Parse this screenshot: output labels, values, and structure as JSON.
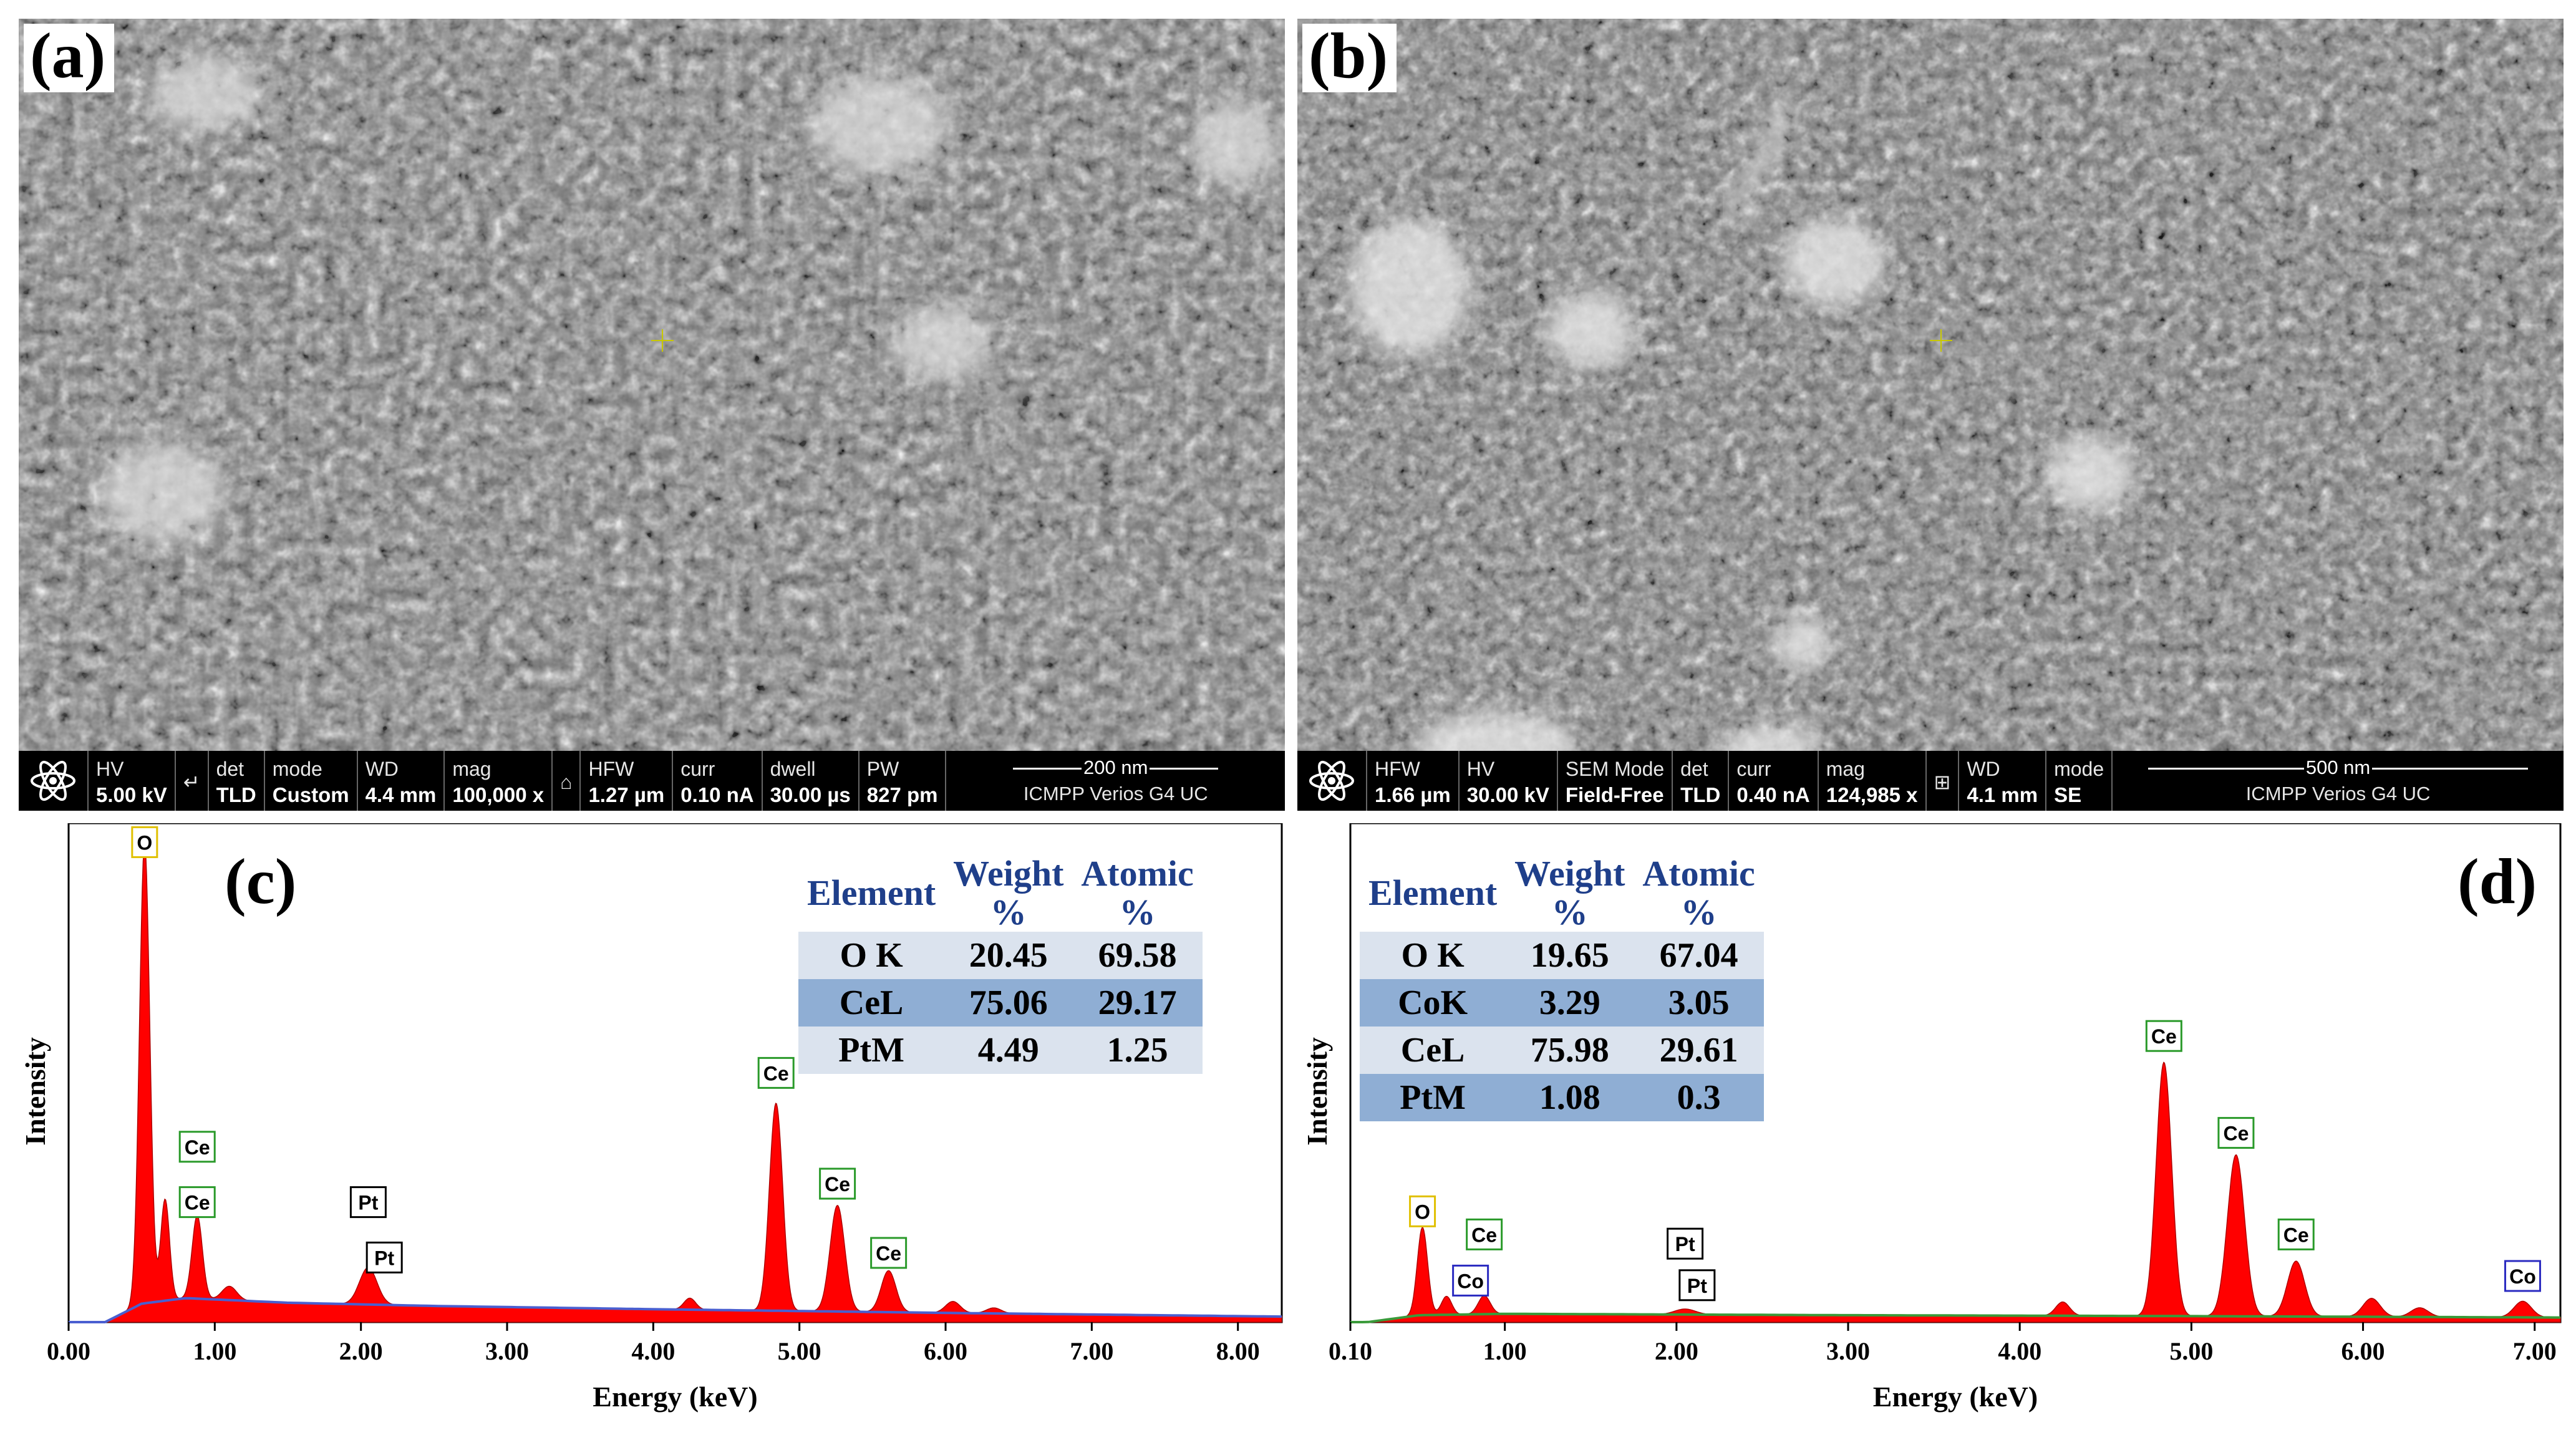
{
  "panels": {
    "a": {
      "letter": "(a)",
      "databar": {
        "cells": [
          {
            "label": "HV",
            "value": "5.00 kV"
          },
          {
            "label": "↵",
            "value": ""
          },
          {
            "label": "det",
            "value": "TLD"
          },
          {
            "label": "mode",
            "value": "Custom"
          },
          {
            "label": "WD",
            "value": "4.4 mm"
          },
          {
            "label": "mag",
            "value": "100,000 x"
          },
          {
            "label": "⌂",
            "value": ""
          },
          {
            "label": "HFW",
            "value": "1.27 µm"
          },
          {
            "label": "curr",
            "value": "0.10 nA"
          },
          {
            "label": "dwell",
            "value": "30.00 µs"
          },
          {
            "label": "PW",
            "value": "827 pm"
          }
        ],
        "scalebar": "200 nm",
        "instrument": "ICMPP Verios G4 UC"
      }
    },
    "b": {
      "letter": "(b)",
      "databar": {
        "cells": [
          {
            "label": "HFW",
            "value": "1.66 µm"
          },
          {
            "label": "HV",
            "value": "30.00 kV"
          },
          {
            "label": "SEM Mode",
            "value": "Field-Free"
          },
          {
            "label": "det",
            "value": "TLD"
          },
          {
            "label": "curr",
            "value": "0.40 nA"
          },
          {
            "label": "mag",
            "value": "124,985 x"
          },
          {
            "label": "⊞",
            "value": ""
          },
          {
            "label": "WD",
            "value": "4.1 mm"
          },
          {
            "label": "mode",
            "value": "SE"
          }
        ],
        "scalebar": "500 nm",
        "instrument": "ICMPP Verios G4 UC"
      }
    },
    "c": {
      "letter": "(c)",
      "table": {
        "headers": {
          "element": "Element",
          "weight_top": "Weight",
          "weight_bot": "%",
          "atomic_top": "Atomic",
          "atomic_bot": "%"
        },
        "rows": [
          {
            "element": "O K",
            "weight": "20.45",
            "atomic": "69.58"
          },
          {
            "element": "CeL",
            "weight": "75.06",
            "atomic": "29.17"
          },
          {
            "element": "PtM",
            "weight": "4.49",
            "atomic": "1.25"
          }
        ]
      }
    },
    "d": {
      "letter": "(d)",
      "table": {
        "headers": {
          "element": "Element",
          "weight_top": "Weight",
          "weight_bot": "%",
          "atomic_top": "Atomic",
          "atomic_bot": "%"
        },
        "rows": [
          {
            "element": "O K",
            "weight": "19.65",
            "atomic": "67.04"
          },
          {
            "element": "CoK",
            "weight": "3.29",
            "atomic": "3.05"
          },
          {
            "element": "CeL",
            "weight": "75.98",
            "atomic": "29.61"
          },
          {
            "element": "PtM",
            "weight": "1.08",
            "atomic": "0.3"
          }
        ]
      }
    }
  },
  "chart_data": [
    {
      "type": "area",
      "panel": "c",
      "xlabel": "Energy (keV)",
      "ylabel": "Intensity",
      "xlim": [
        0.0,
        8.3
      ],
      "ylim": [
        0,
        100
      ],
      "xticks": [
        "0.00",
        "1.00",
        "2.00",
        "3.00",
        "4.00",
        "5.00",
        "6.00",
        "7.00",
        "8.00"
      ],
      "xtick_values": [
        0,
        1,
        2,
        3,
        4,
        5,
        6,
        7,
        8
      ],
      "fill_color": "#ff0000",
      "background_color": "#4a5fd0",
      "peaks": [
        {
          "x": 0.52,
          "y": 100,
          "w": 0.035
        },
        {
          "x": 0.66,
          "y": 22,
          "w": 0.03
        },
        {
          "x": 0.88,
          "y": 18,
          "w": 0.035
        },
        {
          "x": 1.1,
          "y": 3,
          "w": 0.05
        },
        {
          "x": 2.05,
          "y": 8,
          "w": 0.06
        },
        {
          "x": 4.25,
          "y": 2.5,
          "w": 0.04
        },
        {
          "x": 4.84,
          "y": 45,
          "w": 0.045
        },
        {
          "x": 5.26,
          "y": 23,
          "w": 0.05
        },
        {
          "x": 5.61,
          "y": 9,
          "w": 0.05
        },
        {
          "x": 6.05,
          "y": 2.5,
          "w": 0.05
        },
        {
          "x": 6.33,
          "y": 1.2,
          "w": 0.05
        }
      ],
      "background": [
        [
          0.25,
          0
        ],
        [
          0.5,
          4
        ],
        [
          0.8,
          5.2
        ],
        [
          1.5,
          4.2
        ],
        [
          2.5,
          3.5
        ],
        [
          4.0,
          2.8
        ],
        [
          6.0,
          2.0
        ],
        [
          8.3,
          1.2
        ]
      ],
      "peak_labels": [
        {
          "text": "O",
          "x": 0.52,
          "y": 104,
          "color": "#e0c000"
        },
        {
          "text": "Ce",
          "x": 0.88,
          "y": 38,
          "color": "#2a9a2a"
        },
        {
          "text": "Ce",
          "x": 0.88,
          "y": 26,
          "color": "#2a9a2a"
        },
        {
          "text": "Pt",
          "x": 2.05,
          "y": 26,
          "color": "#000000"
        },
        {
          "text": "Pt",
          "x": 2.16,
          "y": 14,
          "color": "#000000"
        },
        {
          "text": "Ce",
          "x": 4.84,
          "y": 54,
          "color": "#2a9a2a"
        },
        {
          "text": "Ce",
          "x": 5.26,
          "y": 30,
          "color": "#2a9a2a"
        },
        {
          "text": "Ce",
          "x": 5.61,
          "y": 15,
          "color": "#2a9a2a"
        }
      ]
    },
    {
      "type": "area",
      "panel": "d",
      "xlabel": "Energy (keV)",
      "ylabel": "Intensity",
      "xlim": [
        0.1,
        7.15
      ],
      "ylim": [
        0,
        100
      ],
      "xticks": [
        "0.10",
        "1.00",
        "2.00",
        "3.00",
        "4.00",
        "5.00",
        "6.00",
        "7.00"
      ],
      "xtick_values": [
        0.1,
        1,
        2,
        3,
        4,
        5,
        6,
        7
      ],
      "fill_color": "#ff0000",
      "background_color": "#3a9a3a",
      "peaks": [
        {
          "x": 0.52,
          "y": 19,
          "w": 0.03
        },
        {
          "x": 0.66,
          "y": 4,
          "w": 0.03
        },
        {
          "x": 0.88,
          "y": 4,
          "w": 0.035
        },
        {
          "x": 2.05,
          "y": 1.2,
          "w": 0.06
        },
        {
          "x": 4.25,
          "y": 3,
          "w": 0.04
        },
        {
          "x": 4.84,
          "y": 55,
          "w": 0.045
        },
        {
          "x": 5.26,
          "y": 35,
          "w": 0.05
        },
        {
          "x": 5.61,
          "y": 12,
          "w": 0.05
        },
        {
          "x": 6.05,
          "y": 4,
          "w": 0.05
        },
        {
          "x": 6.33,
          "y": 2,
          "w": 0.05
        },
        {
          "x": 6.93,
          "y": 3.5,
          "w": 0.05
        }
      ],
      "background": [
        [
          0.2,
          0
        ],
        [
          0.5,
          1.5
        ],
        [
          1.0,
          1.8
        ],
        [
          3.0,
          1.5
        ],
        [
          5.0,
          1.3
        ],
        [
          7.15,
          1.0
        ]
      ],
      "peak_labels": [
        {
          "text": "O",
          "x": 0.52,
          "y": 24,
          "color": "#e0c000"
        },
        {
          "text": "Ce",
          "x": 0.88,
          "y": 19,
          "color": "#2a9a2a"
        },
        {
          "text": "Co",
          "x": 0.8,
          "y": 9,
          "color": "#2a2ac0"
        },
        {
          "text": "Pt",
          "x": 2.05,
          "y": 17,
          "color": "#000000"
        },
        {
          "text": "Pt",
          "x": 2.12,
          "y": 8,
          "color": "#000000"
        },
        {
          "text": "Ce",
          "x": 4.84,
          "y": 62,
          "color": "#2a9a2a"
        },
        {
          "text": "Ce",
          "x": 5.26,
          "y": 41,
          "color": "#2a9a2a"
        },
        {
          "text": "Ce",
          "x": 5.61,
          "y": 19,
          "color": "#2a9a2a"
        },
        {
          "text": "Co",
          "x": 6.93,
          "y": 10,
          "color": "#2a2ac0"
        }
      ]
    }
  ]
}
